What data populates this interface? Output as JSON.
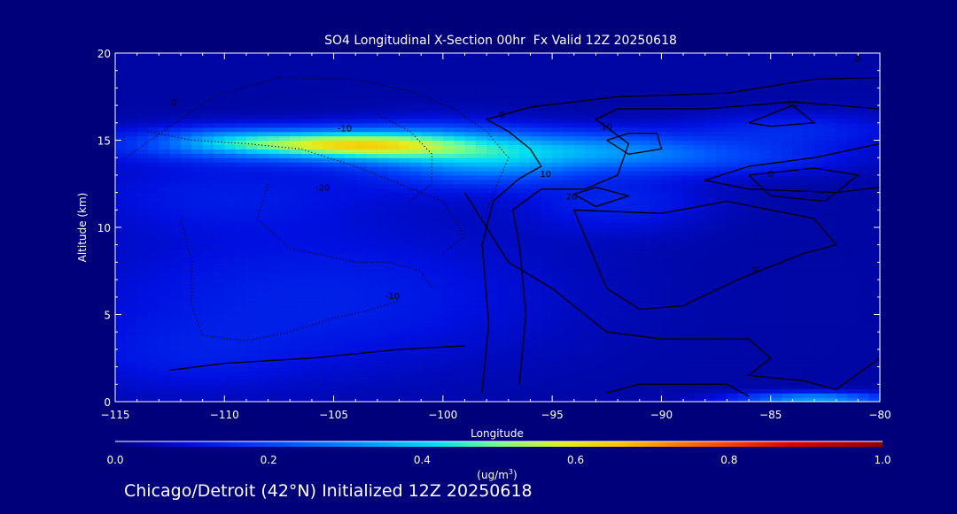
{
  "chart_data": {
    "type": "heatmap",
    "title": "SO4 Longitudinal X-Section 00hr  Fx Valid 12Z 20250618",
    "xlabel": "Longitude",
    "ylabel": "Altitude (km)",
    "xlim": [
      -115,
      -80
    ],
    "ylim": [
      0,
      20
    ],
    "x_ticks": [
      {
        "value": -115,
        "label": "−115"
      },
      {
        "value": -110,
        "label": "−110"
      },
      {
        "value": -105,
        "label": "−105"
      },
      {
        "value": -100,
        "label": "−100"
      },
      {
        "value": -95,
        "label": "−95"
      },
      {
        "value": -90,
        "label": "−90"
      },
      {
        "value": -85,
        "label": "−85"
      },
      {
        "value": -80,
        "label": "−80"
      }
    ],
    "y_ticks": [
      {
        "value": 0,
        "label": "0"
      },
      {
        "value": 5,
        "label": "5"
      },
      {
        "value": 10,
        "label": "10"
      },
      {
        "value": 15,
        "label": "15"
      },
      {
        "value": 20,
        "label": "20"
      }
    ],
    "colorbar": {
      "min": 0.0,
      "max": 1.0,
      "ticks": [
        {
          "value": 0.0,
          "label": "0.0"
        },
        {
          "value": 0.2,
          "label": "0.2"
        },
        {
          "value": 0.4,
          "label": "0.4"
        },
        {
          "value": 0.6,
          "label": "0.6"
        },
        {
          "value": 0.8,
          "label": "0.8"
        },
        {
          "value": 1.0,
          "label": "1.0"
        }
      ],
      "units_main": "(ug/m",
      "units_sup": "3",
      "units_close": ")"
    },
    "so4_field": {
      "background": 0.04,
      "features": [
        {
          "lon": -105,
          "alt": 14.8,
          "sigma_lon": 6.5,
          "sigma_alt": 0.7,
          "amp": 0.28
        },
        {
          "lon": -106,
          "alt": 14.8,
          "sigma_lon": 3.5,
          "sigma_alt": 0.5,
          "amp": 0.18
        },
        {
          "lon": -103.5,
          "alt": 14.6,
          "sigma_lon": 2.5,
          "sigma_alt": 0.6,
          "amp": 0.1
        },
        {
          "lon": -110,
          "alt": 15.1,
          "sigma_lon": 2.0,
          "sigma_alt": 0.5,
          "amp": 0.08
        },
        {
          "lon": -100,
          "alt": 14.2,
          "sigma_lon": 3.0,
          "sigma_alt": 1.2,
          "amp": 0.18
        },
        {
          "lon": -97,
          "alt": 13.5,
          "sigma_lon": 2.5,
          "sigma_alt": 0.8,
          "amp": 0.12
        },
        {
          "lon": -93,
          "alt": 14.4,
          "sigma_lon": 3.5,
          "sigma_alt": 0.8,
          "amp": 0.2
        },
        {
          "lon": -87,
          "alt": 14.0,
          "sigma_lon": 4.0,
          "sigma_alt": 0.7,
          "amp": 0.12
        },
        {
          "lon": -84,
          "alt": 15.6,
          "sigma_lon": 3.5,
          "sigma_alt": 0.7,
          "amp": 0.1
        },
        {
          "lon": -92,
          "alt": 11.5,
          "sigma_lon": 3.0,
          "sigma_alt": 1.2,
          "amp": 0.09
        },
        {
          "lon": -106,
          "alt": 6.0,
          "sigma_lon": 8.0,
          "sigma_alt": 3.0,
          "amp": 0.09
        },
        {
          "lon": -110,
          "alt": 12.0,
          "sigma_lon": 5.0,
          "sigma_alt": 1.5,
          "amp": 0.07
        },
        {
          "lon": -112,
          "alt": 2.5,
          "sigma_lon": 4.0,
          "sigma_alt": 1.5,
          "amp": 0.05
        },
        {
          "lon": -83,
          "alt": 0.2,
          "sigma_lon": 2.5,
          "sigma_alt": 0.25,
          "amp": 0.3
        }
      ]
    },
    "contours": [
      {
        "style": "solid",
        "points": [
          [
            -98.2,
            0.5
          ],
          [
            -97.9,
            4.5
          ],
          [
            -98.2,
            9.0
          ],
          [
            -97.7,
            11.5
          ],
          [
            -96.5,
            12.8
          ],
          [
            -95.5,
            13.5
          ],
          [
            -96.0,
            14.5
          ],
          [
            -97.0,
            15.5
          ],
          [
            -98.0,
            16.2
          ],
          [
            -96.0,
            16.9
          ],
          [
            -92.0,
            17.5
          ],
          [
            -87.0,
            17.7
          ],
          [
            -83.0,
            18.5
          ],
          [
            -80.0,
            18.6
          ]
        ]
      },
      {
        "style": "solid",
        "points": [
          [
            -96.5,
            1.0
          ],
          [
            -96.2,
            5.0
          ],
          [
            -96.5,
            9.0
          ],
          [
            -96.8,
            11.0
          ],
          [
            -95.5,
            12.2
          ],
          [
            -93.5,
            12.2
          ],
          [
            -92.0,
            13.0
          ],
          [
            -91.5,
            14.8
          ],
          [
            -93.0,
            16.2
          ],
          [
            -92.0,
            16.8
          ],
          [
            -88.0,
            16.8
          ],
          [
            -84.0,
            17.2
          ],
          [
            -80.0,
            16.8
          ]
        ]
      },
      {
        "style": "solid",
        "points": [
          [
            -92.5,
            15.0
          ],
          [
            -91.5,
            14.2
          ],
          [
            -90.0,
            14.5
          ],
          [
            -90.2,
            15.4
          ],
          [
            -91.5,
            15.4
          ],
          [
            -92.5,
            15.0
          ]
        ]
      },
      {
        "style": "solid",
        "points": [
          [
            -94.0,
            11.9
          ],
          [
            -93.0,
            11.2
          ],
          [
            -91.5,
            11.8
          ],
          [
            -93.0,
            12.3
          ],
          [
            -94.0,
            11.9
          ]
        ]
      },
      {
        "style": "solid",
        "points": [
          [
            -86.0,
            16.0
          ],
          [
            -84.0,
            17.0
          ],
          [
            -83.0,
            16.0
          ],
          [
            -85.0,
            15.8
          ],
          [
            -86.0,
            16.0
          ]
        ]
      },
      {
        "style": "solid",
        "points": [
          [
            -80.0,
            14.8
          ],
          [
            -83.0,
            14.0
          ],
          [
            -86.0,
            13.5
          ],
          [
            -88.0,
            12.7
          ],
          [
            -86.0,
            12.2
          ],
          [
            -82.0,
            12.0
          ],
          [
            -80.0,
            12.3
          ]
        ]
      },
      {
        "style": "solid",
        "points": [
          [
            -86.0,
            13.0
          ],
          [
            -83.0,
            13.4
          ],
          [
            -81.0,
            13.0
          ],
          [
            -82.5,
            11.5
          ],
          [
            -85.0,
            11.8
          ],
          [
            -86.0,
            13.0
          ]
        ]
      },
      {
        "style": "solid",
        "points": [
          [
            -94.0,
            11.0
          ],
          [
            -90.0,
            10.8
          ],
          [
            -87.0,
            11.5
          ],
          [
            -83.0,
            10.5
          ],
          [
            -82.0,
            9.0
          ],
          [
            -83.5,
            8.5
          ],
          [
            -86.5,
            7.0
          ],
          [
            -89.0,
            5.5
          ],
          [
            -91.0,
            5.3
          ],
          [
            -92.5,
            6.5
          ],
          [
            -93.0,
            8.0
          ],
          [
            -94.0,
            11.0
          ]
        ]
      },
      {
        "style": "solid",
        "points": [
          [
            -99.0,
            12.0
          ],
          [
            -97.0,
            8.0
          ],
          [
            -95.0,
            6.5
          ],
          [
            -92.5,
            4.0
          ],
          [
            -90.0,
            3.6
          ],
          [
            -86.0,
            3.6
          ],
          [
            -85.0,
            2.5
          ],
          [
            -86.0,
            1.5
          ],
          [
            -83.5,
            1.2
          ],
          [
            -82.0,
            0.7
          ],
          [
            -80.0,
            2.5
          ]
        ]
      },
      {
        "style": "solid",
        "points": [
          [
            -92.5,
            0.5
          ],
          [
            -91.0,
            1.0
          ],
          [
            -87.0,
            1.0
          ],
          [
            -86.0,
            0.3
          ]
        ]
      },
      {
        "style": "solid",
        "points": [
          [
            -112.5,
            1.8
          ],
          [
            -110.0,
            2.2
          ],
          [
            -106.0,
            2.5
          ],
          [
            -102.0,
            3.0
          ],
          [
            -99.0,
            3.2
          ]
        ]
      },
      {
        "style": "dotted",
        "points": [
          [
            -114.5,
            14.0
          ],
          [
            -112.5,
            15.8
          ],
          [
            -110.5,
            17.5
          ],
          [
            -107.5,
            18.6
          ],
          [
            -104.0,
            18.5
          ],
          [
            -101.5,
            17.8
          ],
          [
            -99.5,
            16.8
          ],
          [
            -98.0,
            15.5
          ],
          [
            -97.0,
            14.0
          ],
          [
            -97.5,
            12.5
          ],
          [
            -98.0,
            11.0
          ]
        ]
      },
      {
        "style": "dotted",
        "points": [
          [
            -113.5,
            15.5
          ],
          [
            -111.5,
            15.0
          ],
          [
            -109.0,
            14.8
          ],
          [
            -106.5,
            14.5
          ],
          [
            -104.0,
            13.5
          ],
          [
            -102.0,
            12.5
          ],
          [
            -100.0,
            11.5
          ],
          [
            -99.0,
            9.5
          ],
          [
            -100.0,
            8.5
          ]
        ]
      },
      {
        "style": "dotted",
        "points": [
          [
            -103.0,
            16.5
          ],
          [
            -101.5,
            15.5
          ],
          [
            -100.5,
            14.2
          ],
          [
            -100.5,
            12.5
          ],
          [
            -101.5,
            11.5
          ]
        ]
      },
      {
        "style": "dotted",
        "points": [
          [
            -108.0,
            12.5
          ],
          [
            -108.5,
            10.5
          ],
          [
            -107.0,
            8.8
          ],
          [
            -104.0,
            8.0
          ],
          [
            -102.5,
            8.0
          ],
          [
            -101.0,
            7.5
          ],
          [
            -100.5,
            6.5
          ]
        ]
      },
      {
        "style": "dotted",
        "points": [
          [
            -112.0,
            10.5
          ],
          [
            -111.5,
            8.0
          ],
          [
            -111.5,
            5.5
          ],
          [
            -111.0,
            3.8
          ],
          [
            -109.0,
            3.5
          ],
          [
            -107.0,
            4.0
          ],
          [
            -105.0,
            4.8
          ],
          [
            -103.5,
            5.2
          ],
          [
            -102.0,
            5.8
          ]
        ]
      }
    ],
    "contour_labels": [
      {
        "text": "0",
        "lon": -112.3,
        "alt": 17.0
      },
      {
        "text": "-10",
        "lon": -104.5,
        "alt": 15.5
      },
      {
        "text": "-20",
        "lon": -105.5,
        "alt": 12.1
      },
      {
        "text": "-10",
        "lon": -102.3,
        "alt": 5.9
      },
      {
        "text": "0",
        "lon": -97.3,
        "alt": 16.3
      },
      {
        "text": "10",
        "lon": -92.5,
        "alt": 15.6
      },
      {
        "text": "10",
        "lon": -84.0,
        "alt": 16.9
      },
      {
        "text": "10",
        "lon": -95.3,
        "alt": 12.9
      },
      {
        "text": "20",
        "lon": -94.1,
        "alt": 11.6
      },
      {
        "text": "0",
        "lon": -81.0,
        "alt": 19.5
      },
      {
        "text": "0",
        "lon": -85.0,
        "alt": 12.9
      },
      {
        "text": "0",
        "lon": -85.7,
        "alt": 7.4
      }
    ]
  },
  "footer": {
    "caption": "Chicago/Detroit (42°N) Initialized 12Z 20250618"
  }
}
